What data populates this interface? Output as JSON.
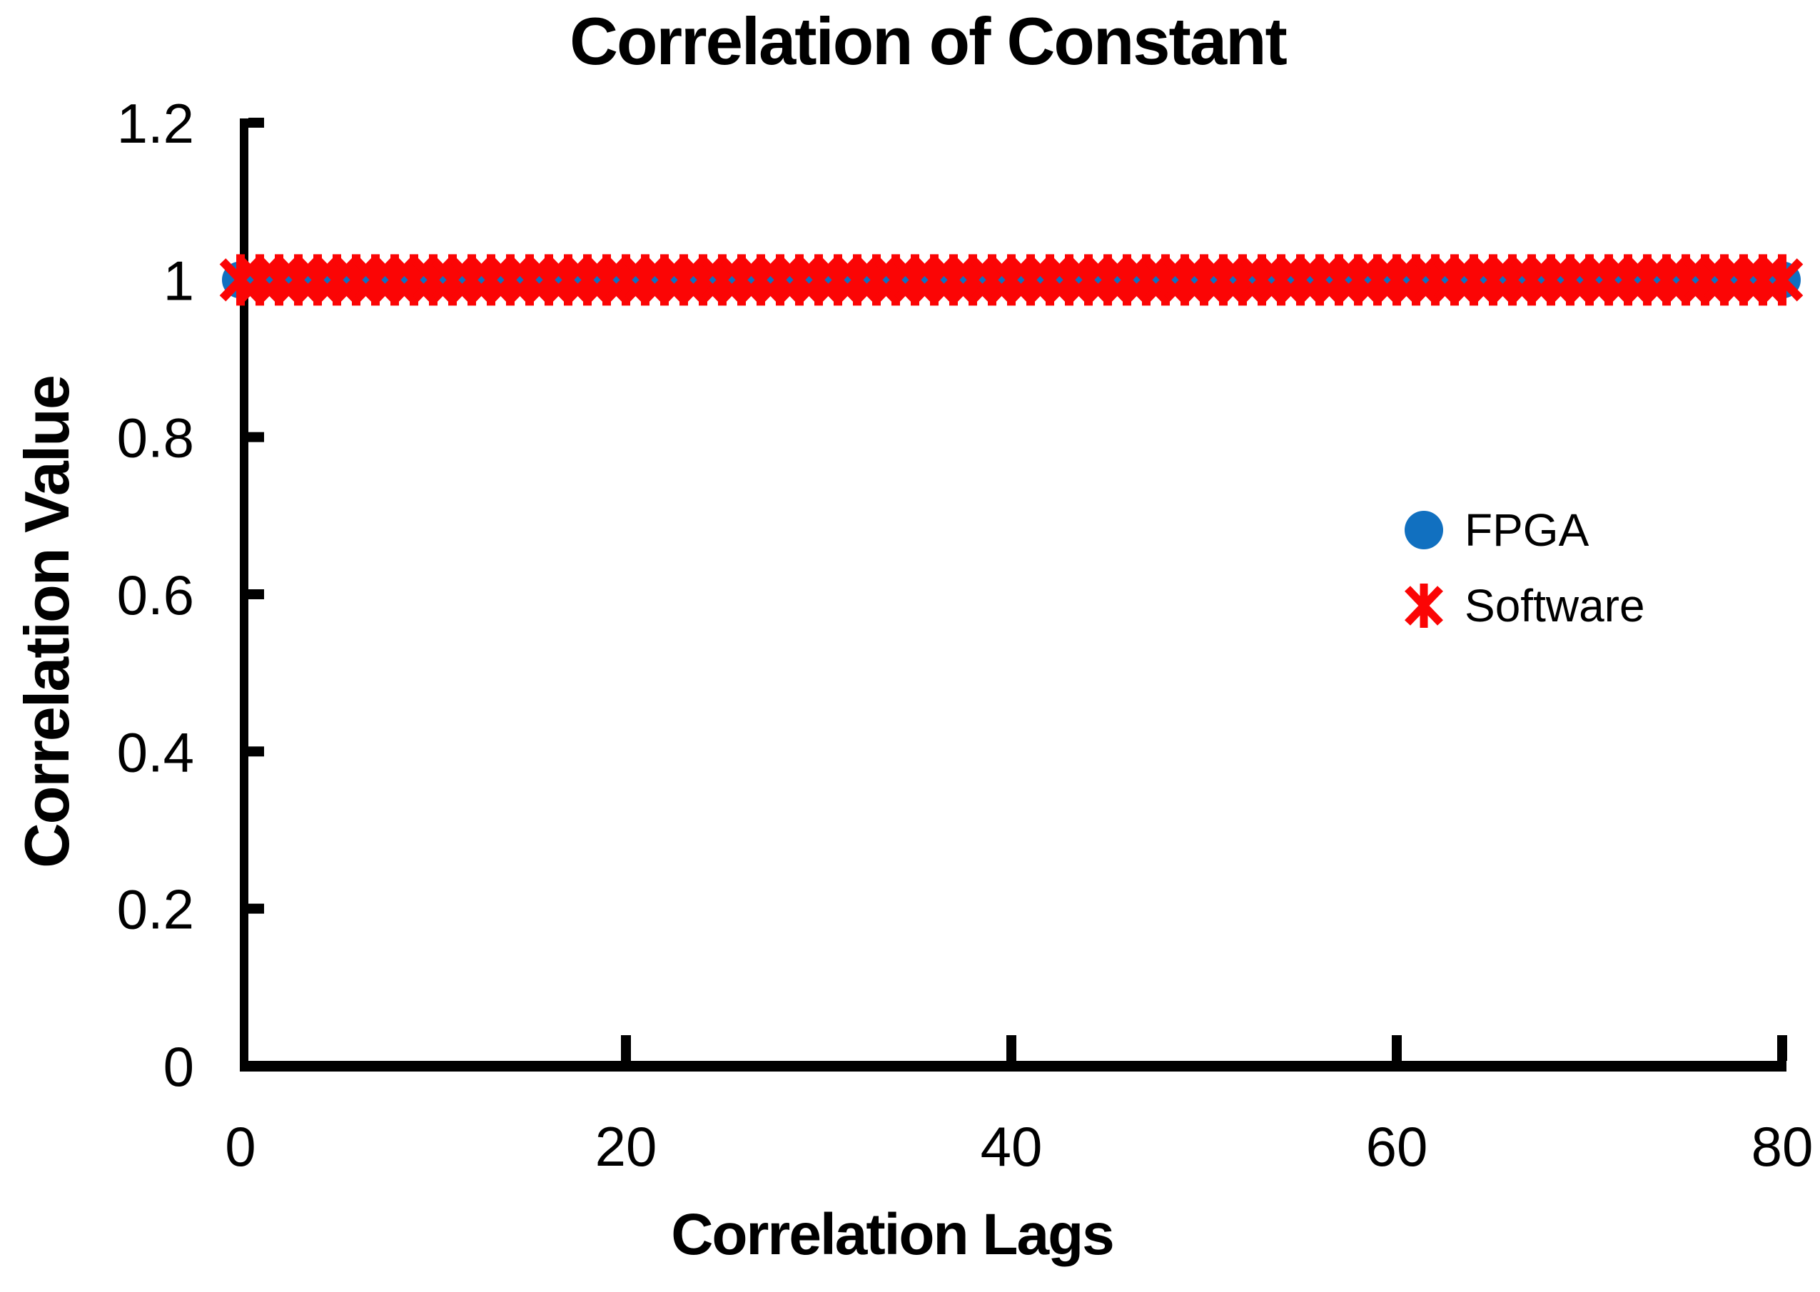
{
  "chart_data": {
    "type": "scatter",
    "title": "Correlation of Constant",
    "xlabel": "Correlation Lags",
    "ylabel": "Correlation Value",
    "xlim": [
      0,
      80
    ],
    "ylim": [
      0,
      1.2
    ],
    "xticks": [
      0,
      20,
      40,
      60,
      80
    ],
    "yticks": [
      0,
      0.2,
      0.4,
      0.6,
      0.8,
      1,
      1.2
    ],
    "grid": false,
    "legend_position": "middle-right",
    "axis_color": "#000000",
    "x": [
      0,
      1,
      2,
      3,
      4,
      5,
      6,
      7,
      8,
      9,
      10,
      11,
      12,
      13,
      14,
      15,
      16,
      17,
      18,
      19,
      20,
      21,
      22,
      23,
      24,
      25,
      26,
      27,
      28,
      29,
      30,
      31,
      32,
      33,
      34,
      35,
      36,
      37,
      38,
      39,
      40,
      41,
      42,
      43,
      44,
      45,
      46,
      47,
      48,
      49,
      50,
      51,
      52,
      53,
      54,
      55,
      56,
      57,
      58,
      59,
      60,
      61,
      62,
      63,
      64,
      65,
      66,
      67,
      68,
      69,
      70,
      71,
      72,
      73,
      74,
      75,
      76,
      77,
      78,
      79,
      80
    ],
    "series": [
      {
        "name": "FPGA",
        "marker": "circle",
        "color": "#1170c0",
        "values": [
          1,
          1,
          1,
          1,
          1,
          1,
          1,
          1,
          1,
          1,
          1,
          1,
          1,
          1,
          1,
          1,
          1,
          1,
          1,
          1,
          1,
          1,
          1,
          1,
          1,
          1,
          1,
          1,
          1,
          1,
          1,
          1,
          1,
          1,
          1,
          1,
          1,
          1,
          1,
          1,
          1,
          1,
          1,
          1,
          1,
          1,
          1,
          1,
          1,
          1,
          1,
          1,
          1,
          1,
          1,
          1,
          1,
          1,
          1,
          1,
          1,
          1,
          1,
          1,
          1,
          1,
          1,
          1,
          1,
          1,
          1,
          1,
          1,
          1,
          1,
          1,
          1,
          1,
          1,
          1,
          1
        ]
      },
      {
        "name": "Software",
        "marker": "asterisk",
        "color": "#fb0505",
        "values": [
          1,
          1,
          1,
          1,
          1,
          1,
          1,
          1,
          1,
          1,
          1,
          1,
          1,
          1,
          1,
          1,
          1,
          1,
          1,
          1,
          1,
          1,
          1,
          1,
          1,
          1,
          1,
          1,
          1,
          1,
          1,
          1,
          1,
          1,
          1,
          1,
          1,
          1,
          1,
          1,
          1,
          1,
          1,
          1,
          1,
          1,
          1,
          1,
          1,
          1,
          1,
          1,
          1,
          1,
          1,
          1,
          1,
          1,
          1,
          1,
          1,
          1,
          1,
          1,
          1,
          1,
          1,
          1,
          1,
          1,
          1,
          1,
          1,
          1,
          1,
          1,
          1,
          1,
          1,
          1,
          1
        ]
      }
    ]
  },
  "legend": {
    "items": [
      {
        "label": "FPGA",
        "marker": "circle",
        "color": "#1170c0"
      },
      {
        "label": "Software",
        "marker": "asterisk",
        "color": "#fb0505"
      }
    ]
  }
}
